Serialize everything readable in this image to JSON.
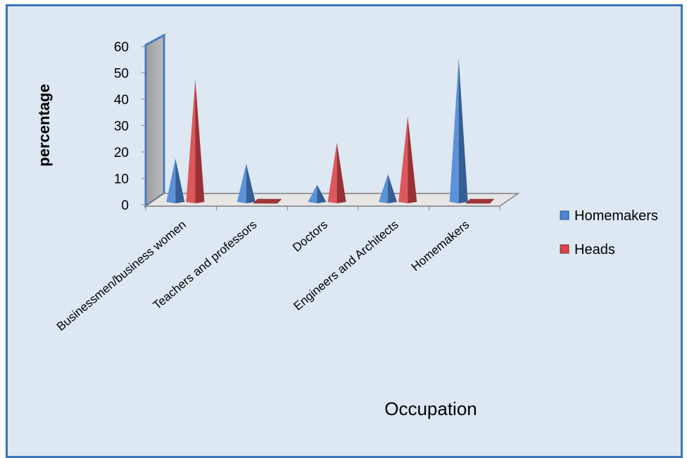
{
  "chart_data": {
    "type": "bar",
    "style": "3d-cone",
    "title": "",
    "xlabel": "Occupation",
    "ylabel": "percentage",
    "ylim": [
      0,
      60
    ],
    "yticks": [
      0,
      10,
      20,
      30,
      40,
      50,
      60
    ],
    "grid": false,
    "legend_position": "right",
    "categories": [
      "Businessmen/business women",
      "Teachers and professors",
      "Doctors",
      "Engineers and Architects",
      "Homemakers"
    ],
    "series": [
      {
        "name": "Homemakers",
        "color": "#4a86d4",
        "values": [
          17,
          15,
          7,
          11,
          55
        ]
      },
      {
        "name": "Heads",
        "color": "#d9454a",
        "values": [
          47,
          0,
          23,
          33,
          0
        ]
      }
    ]
  }
}
